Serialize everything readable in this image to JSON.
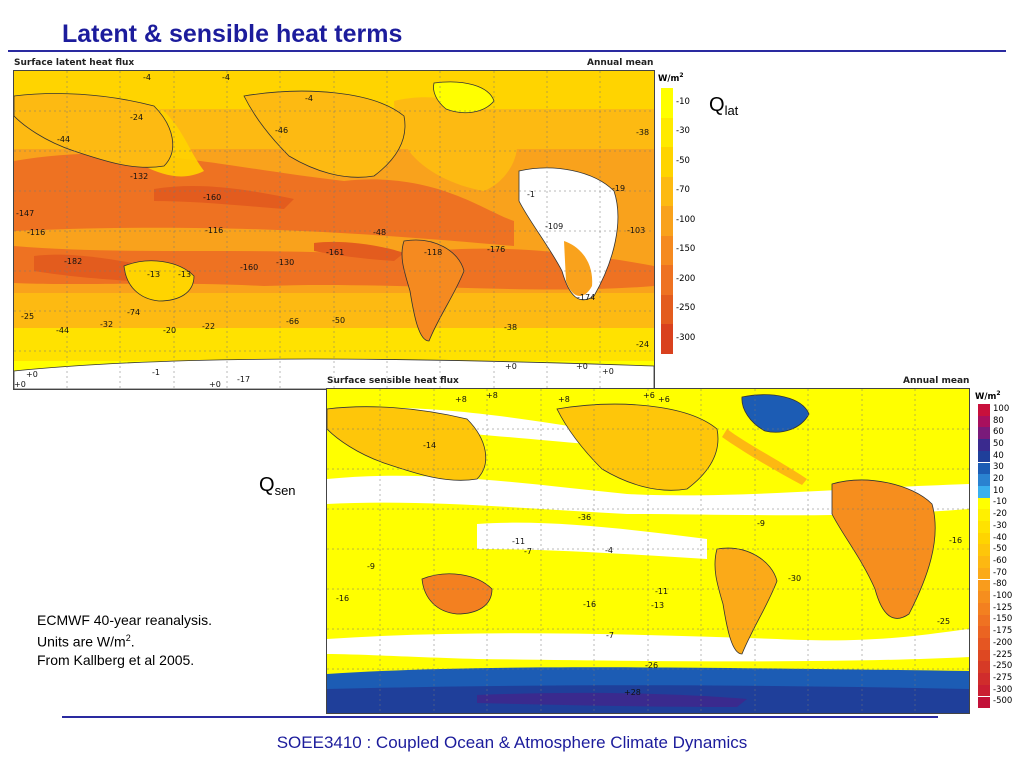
{
  "slide": {
    "title": "Latent & sensible heat terms",
    "footer": "SOEE3410 : Coupled Ocean & Atmosphere Climate Dynamics",
    "note_lines": [
      "ECMWF 40-year reanalysis.",
      "Units are W/m",
      "2",
      ".",
      "From Kallberg et al 2005."
    ]
  },
  "latent": {
    "header_left": "Surface latent heat flux",
    "header_right": "Annual mean",
    "units_base": "W/m",
    "units_exp": "2",
    "q_base": "Q",
    "q_sub": "lat",
    "colorbar": [
      {
        "label": "-10",
        "color": "#ffff00"
      },
      {
        "label": "-30",
        "color": "#ffea00"
      },
      {
        "label": "-50",
        "color": "#ffd400"
      },
      {
        "label": "-70",
        "color": "#fdba12"
      },
      {
        "label": "-100",
        "color": "#f9a21c"
      },
      {
        "label": "-150",
        "color": "#f58a20"
      },
      {
        "label": "-200",
        "color": "#ee7222"
      },
      {
        "label": "-250",
        "color": "#e35c1e"
      },
      {
        "label": "-300",
        "color": "#d9411e"
      }
    ],
    "contour_labels": [
      "-4",
      "-4",
      "-4",
      "-24",
      "-38",
      "-44",
      "-46",
      "-132",
      "-160",
      "-116",
      "-147",
      "-116",
      "-182",
      "-13",
      "-13",
      "-160",
      "-130",
      "-161",
      "-118",
      "-176",
      "-103",
      "-109",
      "-174",
      "-1",
      "-19",
      "-25",
      "-44",
      "-32",
      "-74",
      "-20",
      "-22",
      "-66",
      "-50",
      "-38",
      "-24",
      "+0",
      "+0",
      "-1",
      "+0",
      "+0",
      "+0",
      "+0",
      "-17",
      "-48"
    ]
  },
  "sensible": {
    "header_left": "Surface sensible heat flux",
    "header_right": "Annual mean",
    "units_base": "W/m",
    "units_exp": "2",
    "q_base": "Q",
    "q_sub": "sen",
    "colorbar": [
      {
        "label": "100",
        "color": "#c8103c"
      },
      {
        "label": "80",
        "color": "#a8105e"
      },
      {
        "label": "60",
        "color": "#7a1a7a"
      },
      {
        "label": "50",
        "color": "#3a2a8e"
      },
      {
        "label": "40",
        "color": "#1f3f9a"
      },
      {
        "label": "30",
        "color": "#1c5cb4"
      },
      {
        "label": "20",
        "color": "#2a82d0"
      },
      {
        "label": "10",
        "color": "#3ab0ee"
      },
      {
        "label": "-10",
        "color": "#ffff00"
      },
      {
        "label": "-20",
        "color": "#fff000"
      },
      {
        "label": "-30",
        "color": "#ffe200"
      },
      {
        "label": "-40",
        "color": "#ffd400"
      },
      {
        "label": "-50",
        "color": "#fec60a"
      },
      {
        "label": "-60",
        "color": "#fdb812"
      },
      {
        "label": "-70",
        "color": "#fbaa18"
      },
      {
        "label": "-80",
        "color": "#f99c1c"
      },
      {
        "label": "-100",
        "color": "#f68e1e"
      },
      {
        "label": "-125",
        "color": "#f38020"
      },
      {
        "label": "-150",
        "color": "#ef7222"
      },
      {
        "label": "-175",
        "color": "#eb6422"
      },
      {
        "label": "-200",
        "color": "#e55622"
      },
      {
        "label": "-225",
        "color": "#de4822"
      },
      {
        "label": "-250",
        "color": "#d63a26"
      },
      {
        "label": "-275",
        "color": "#d02c2c"
      },
      {
        "label": "-300",
        "color": "#ca1e32"
      },
      {
        "label": "-500",
        "color": "#c21038"
      }
    ],
    "contour_labels": [
      "+8",
      "+8",
      "+8",
      "+6",
      "+6",
      "-14",
      "-36",
      "-11",
      "-7",
      "-4",
      "-9",
      "-9",
      "-16",
      "-16",
      "-11",
      "-13",
      "-7",
      "-26",
      "+28",
      "-30",
      "-16",
      "-25"
    ]
  }
}
